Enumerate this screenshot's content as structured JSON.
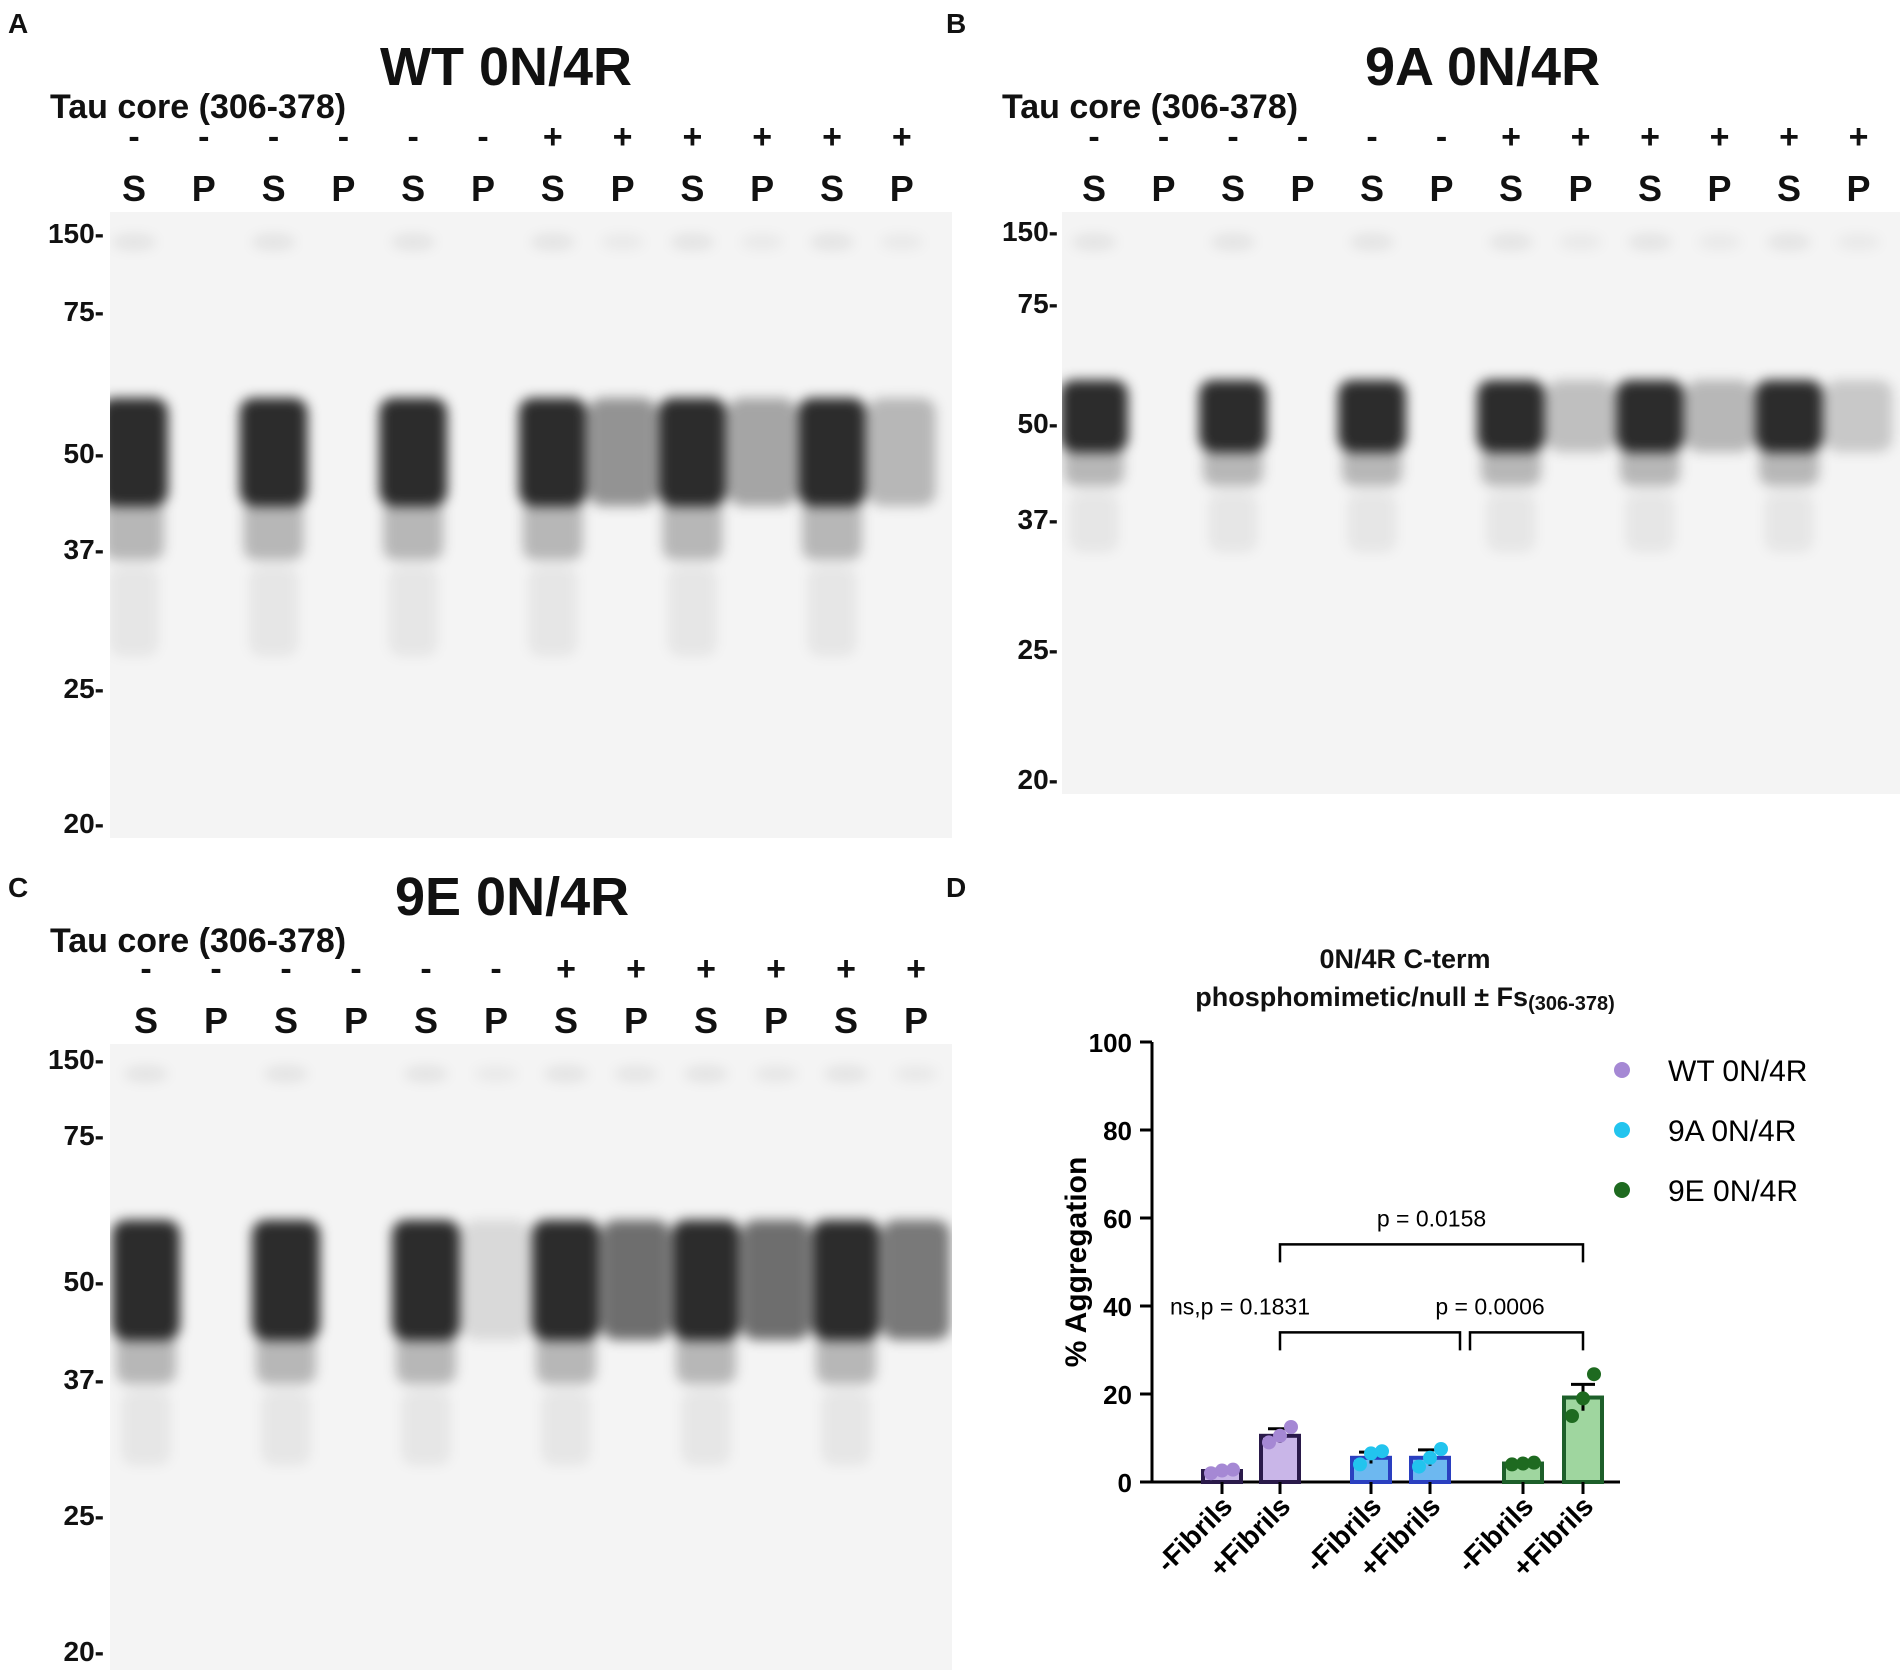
{
  "panels": {
    "A": {
      "letter": "A",
      "title": "WT 0N/4R"
    },
    "B": {
      "letter": "B",
      "title": "9A 0N/4R"
    },
    "C": {
      "letter": "C",
      "title": "9E 0N/4R"
    },
    "D": {
      "letter": "D"
    }
  },
  "blot": {
    "tau_label": "Tau core (306-378)",
    "signs": [
      "-",
      "-",
      "-",
      "-",
      "-",
      "-",
      "+",
      "+",
      "+",
      "+",
      "+",
      "+"
    ],
    "lanes": [
      "S",
      "P",
      "S",
      "P",
      "S",
      "P",
      "S",
      "P",
      "S",
      "P",
      "S",
      "P"
    ],
    "mw_markers": [
      "150-",
      "75-",
      "50-",
      "37-",
      "25-",
      "20-"
    ]
  },
  "chart_data": {
    "type": "bar",
    "title_line1": "0N/4R C-term",
    "title_line2": "phosphomimetic/null ± Fs",
    "title_sub": "(306-378)",
    "ylabel": "% Aggregation",
    "ylim": [
      0,
      100
    ],
    "yticks": [
      "0",
      "20",
      "40",
      "60",
      "80",
      "100"
    ],
    "categories": [
      "-Fibrils",
      "+Fibrils",
      "-Fibrils",
      "+Fibrils",
      "-Fibrils",
      "+Fibrils"
    ],
    "values": [
      2.5,
      10.5,
      5.5,
      5.5,
      4.2,
      19.2
    ],
    "errors": [
      0.4,
      1.6,
      1.3,
      1.8,
      0.3,
      3.0
    ],
    "points": [
      [
        2,
        2.6,
        2.8
      ],
      [
        9,
        10.5,
        12.5
      ],
      [
        4,
        6.5,
        7
      ],
      [
        3.5,
        5.5,
        7.5
      ],
      [
        4,
        4.2,
        4.4
      ],
      [
        15,
        19,
        24.5
      ]
    ],
    "legend": [
      {
        "name": "WT 0N/4R",
        "color": "#a588d4"
      },
      {
        "name": "9A 0N/4R",
        "color": "#22c4ee"
      },
      {
        "name": "9E 0N/4R",
        "color": "#1e6a20"
      }
    ],
    "bar_fills": [
      "#c9b6e8",
      "#c9b6e8",
      "#6db8f0",
      "#6db8f0",
      "#9fd69f",
      "#9fd69f"
    ],
    "bar_edges": [
      "#2a1a4a",
      "#2a1a4a",
      "#2a3fc0",
      "#2a3fc0",
      "#1d5f2a",
      "#1d5f2a"
    ],
    "brackets": [
      {
        "label": "p = 0.0158"
      },
      {
        "label": "ns,p = 0.1831"
      },
      {
        "label": "p = 0.0006"
      }
    ]
  }
}
